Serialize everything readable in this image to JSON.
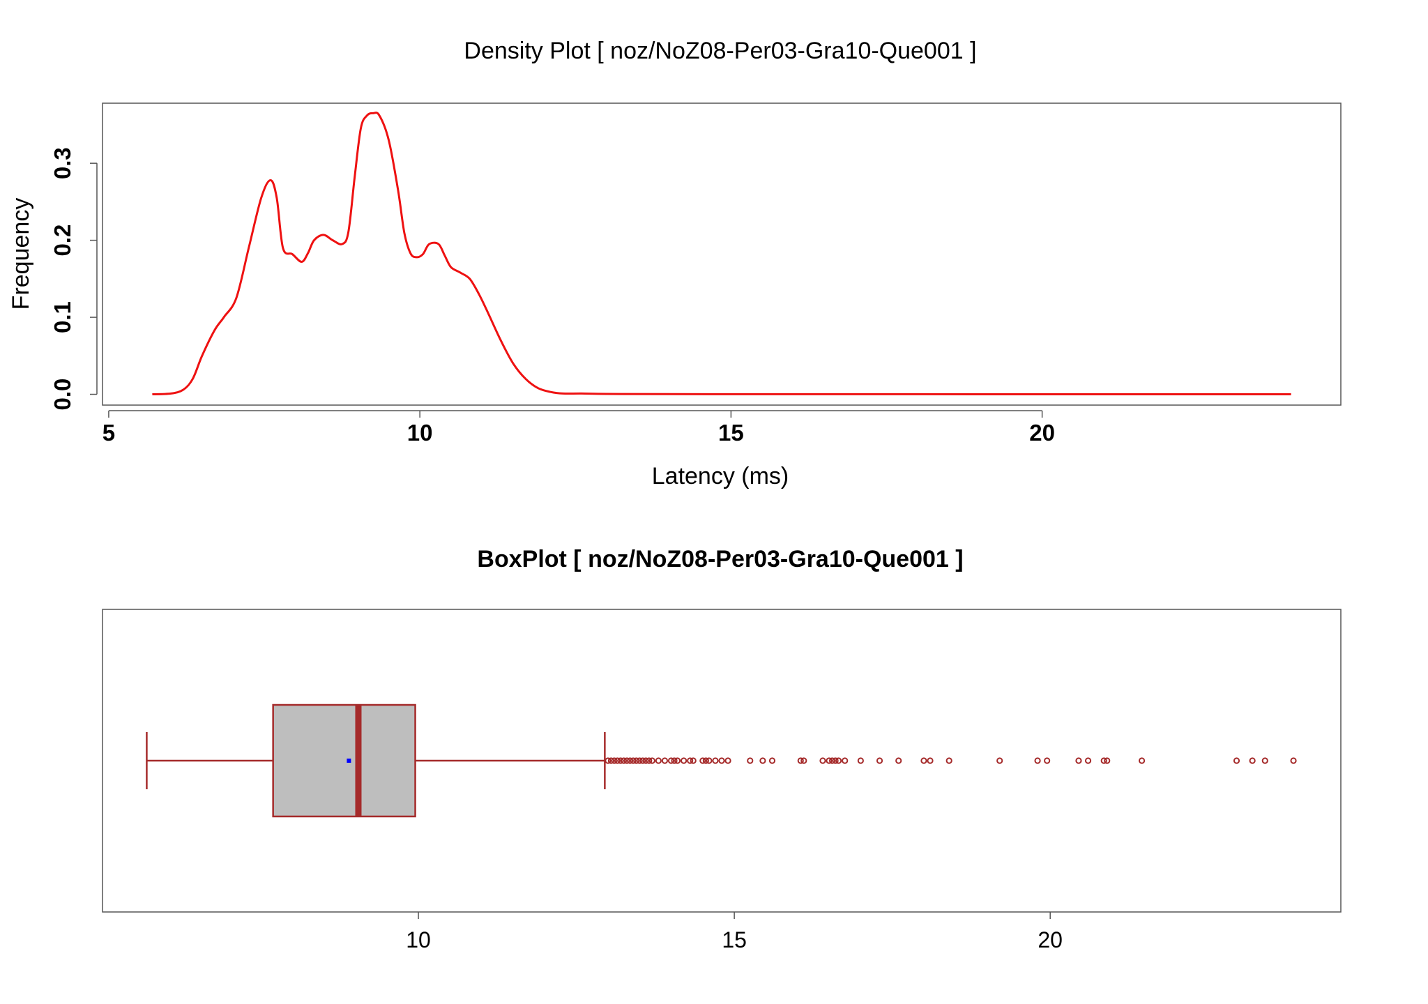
{
  "colors": {
    "density_line": "#ee1111",
    "box_stroke": "#a52a2a",
    "box_fill": "#bebebe",
    "mean_marker": "#0000ff",
    "frame": "#555555"
  },
  "chart_data": [
    {
      "type": "line",
      "title": "Density Plot [ noz/NoZ08-Per03-Gra10-Que001 ]",
      "xlabel": "Latency (ms)",
      "ylabel": "Frequency",
      "xlim": [
        4.9,
        24.8
      ],
      "ylim": [
        -0.014,
        0.378
      ],
      "x_ticks": [
        5,
        10,
        15,
        20
      ],
      "x_tick_labels": [
        "5",
        "10",
        "15",
        "20"
      ],
      "y_ticks": [
        0.0,
        0.1,
        0.2,
        0.3
      ],
      "y_tick_labels": [
        "0.0",
        "0.1",
        "0.2",
        "0.3"
      ],
      "grid": false,
      "series": [
        {
          "x": [
            5.7,
            6.0,
            6.2,
            6.35,
            6.5,
            6.7,
            6.85,
            7.05,
            7.25,
            7.45,
            7.6,
            7.7,
            7.8,
            7.95,
            8.1,
            8.2,
            8.3,
            8.45,
            8.6,
            8.75,
            8.85,
            8.95,
            9.05,
            9.15,
            9.25,
            9.35,
            9.5,
            9.65,
            9.75,
            9.85,
            9.95,
            10.05,
            10.15,
            10.3,
            10.4,
            10.5,
            10.65,
            10.8,
            10.95,
            11.1,
            11.3,
            11.5,
            11.7,
            11.9,
            12.1,
            12.3,
            12.6,
            13.0,
            14.0,
            16.0,
            18.0,
            20.0,
            22.0,
            24.0
          ],
          "y": [
            0.0,
            0.001,
            0.006,
            0.02,
            0.05,
            0.083,
            0.1,
            0.125,
            0.19,
            0.255,
            0.278,
            0.255,
            0.19,
            0.182,
            0.172,
            0.183,
            0.2,
            0.207,
            0.2,
            0.195,
            0.21,
            0.28,
            0.345,
            0.362,
            0.365,
            0.362,
            0.33,
            0.265,
            0.21,
            0.183,
            0.178,
            0.182,
            0.195,
            0.195,
            0.18,
            0.165,
            0.158,
            0.15,
            0.13,
            0.105,
            0.07,
            0.04,
            0.02,
            0.008,
            0.003,
            0.001,
            0.001,
            0.0005,
            0.0002,
            0.0001,
            0.0001,
            0.0,
            0.0,
            0.0
          ]
        }
      ]
    },
    {
      "type": "box",
      "title": "BoxPlot [ noz/NoZ08-Per03-Gra10-Que001 ]",
      "xlim": [
        5.0,
        24.6
      ],
      "x_ticks": [
        10,
        15,
        20
      ],
      "x_tick_labels": [
        "10",
        "15",
        "20"
      ],
      "box": {
        "whisker_low": 5.7,
        "q1": 7.7,
        "median": 9.05,
        "q3": 9.95,
        "whisker_high": 12.95,
        "mean": 8.9
      },
      "outliers": [
        13.0,
        13.05,
        13.1,
        13.15,
        13.2,
        13.25,
        13.3,
        13.35,
        13.4,
        13.45,
        13.5,
        13.55,
        13.6,
        13.65,
        13.7,
        13.8,
        13.9,
        14.0,
        14.05,
        14.1,
        14.2,
        14.3,
        14.35,
        14.5,
        14.55,
        14.6,
        14.7,
        14.8,
        14.9,
        15.25,
        15.45,
        15.6,
        16.05,
        16.1,
        16.4,
        16.5,
        16.55,
        16.6,
        16.65,
        16.75,
        17.0,
        17.3,
        17.6,
        18.0,
        18.1,
        18.4,
        19.2,
        19.8,
        19.95,
        20.45,
        20.6,
        20.85,
        20.9,
        21.45,
        22.95,
        23.2,
        23.4,
        23.85
      ]
    }
  ]
}
